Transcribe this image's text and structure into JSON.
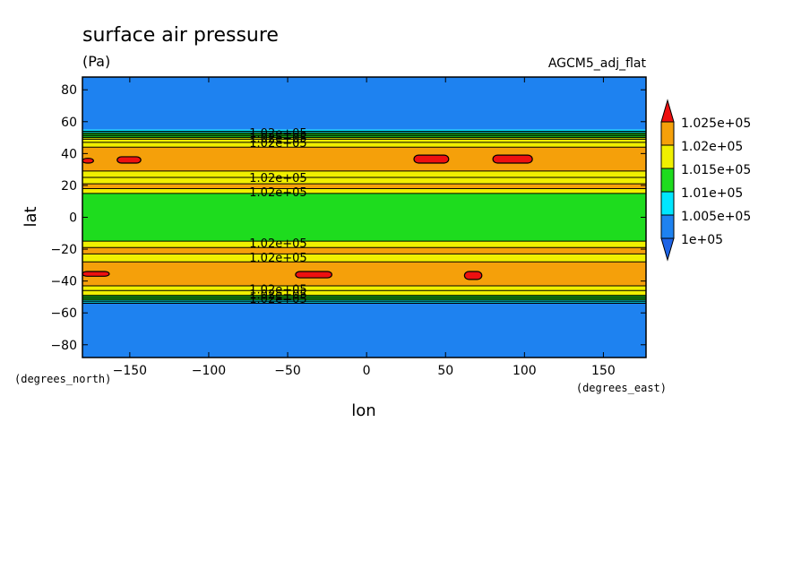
{
  "chart_data": {
    "type": "heatmap",
    "title": "surface air pressure",
    "units": "(Pa)",
    "model": "AGCM5_adj_flat",
    "xlabel": "lon",
    "ylabel": "lat",
    "x_units": "(degrees_east)",
    "y_units": "(degrees_north)",
    "xlim": [
      -180,
      177
    ],
    "ylim": [
      -88,
      88
    ],
    "xticks": [
      -150,
      -100,
      -50,
      0,
      50,
      100,
      150
    ],
    "xtick_labels": [
      "−150",
      "−100",
      "−50",
      "0",
      "50",
      "100",
      "150"
    ],
    "yticks": [
      -80,
      -60,
      -40,
      -20,
      0,
      20,
      40,
      60,
      80
    ],
    "ytick_labels": [
      "−80",
      "−60",
      "−40",
      "−20",
      "0",
      "20",
      "40",
      "60",
      "80"
    ],
    "levels": [
      100000,
      100500,
      101000,
      101500,
      102000,
      102500
    ],
    "colorbar": {
      "labels": [
        "1e+05",
        "1.005e+05",
        "1.01e+05",
        "1.015e+05",
        "1.02e+05",
        "1.025e+05"
      ],
      "colors": [
        "#1e82f0",
        "#00e6ff",
        "#1edc1e",
        "#f0f000",
        "#f5a00a",
        "#ee1010"
      ],
      "below_color": "#1e64e6"
    },
    "bands": [
      {
        "lat_from": 55,
        "lat_to": 88,
        "level": 100000
      },
      {
        "lat_from": 53,
        "lat_to": 55,
        "level": 100500
      },
      {
        "lat_from": 50,
        "lat_to": 53,
        "level": 101000
      },
      {
        "lat_from": 44,
        "lat_to": 50,
        "level": 101500
      },
      {
        "lat_from": 29,
        "lat_to": 44,
        "level": 102000
      },
      {
        "lat_from": 21,
        "lat_to": 29,
        "level": 101500
      },
      {
        "lat_from": 18,
        "lat_to": 21,
        "level": 102000
      },
      {
        "lat_from": 15,
        "lat_to": 18,
        "level": 101500
      },
      {
        "lat_from": -15,
        "lat_to": 15,
        "level": 101000
      },
      {
        "lat_from": -19,
        "lat_to": -15,
        "level": 101500
      },
      {
        "lat_from": -23,
        "lat_to": -19,
        "level": 102000
      },
      {
        "lat_from": -28,
        "lat_to": -23,
        "level": 101500
      },
      {
        "lat_from": -43,
        "lat_to": -28,
        "level": 102000
      },
      {
        "lat_from": -49,
        "lat_to": -43,
        "level": 101500
      },
      {
        "lat_from": -52,
        "lat_to": -49,
        "level": 101000
      },
      {
        "lat_from": -54,
        "lat_to": -52,
        "level": 100500
      },
      {
        "lat_from": -88,
        "lat_to": -54,
        "level": 100000
      }
    ],
    "contour_lats": [
      54,
      53,
      52,
      51,
      50,
      49,
      47,
      44,
      29,
      25,
      21,
      18,
      15,
      -15,
      -19,
      -23,
      -28,
      -43,
      -46,
      -49,
      -50,
      -51,
      -52,
      -53,
      -54
    ],
    "high_cells": [
      {
        "lon_from": -180,
        "lon_to": -173,
        "lat_from": 34,
        "lat_to": 37
      },
      {
        "lon_from": -158,
        "lon_to": -143,
        "lat_from": 34,
        "lat_to": 38
      },
      {
        "lon_from": 30,
        "lon_to": 52,
        "lat_from": 34,
        "lat_to": 39
      },
      {
        "lon_from": 80,
        "lon_to": 105,
        "lat_from": 34,
        "lat_to": 39
      },
      {
        "lon_from": -180,
        "lon_to": -163,
        "lat_from": -37,
        "lat_to": -34
      },
      {
        "lon_from": -45,
        "lon_to": -22,
        "lat_from": -38,
        "lat_to": -34
      },
      {
        "lon_from": 62,
        "lon_to": 73,
        "lat_from": -39,
        "lat_to": -34
      }
    ],
    "contour_labels": [
      {
        "text": "1.02e+05",
        "lon": -56,
        "lat": 53
      },
      {
        "text": "1.02e+05",
        "lon": -56,
        "lat": 50
      },
      {
        "text": "1.02e+05",
        "lon": -56,
        "lat": 47
      },
      {
        "text": "1.02e+05",
        "lon": -56,
        "lat": 25
      },
      {
        "text": "1.02e+05",
        "lon": -56,
        "lat": 16
      },
      {
        "text": "1.02e+05",
        "lon": -56,
        "lat": -16
      },
      {
        "text": "1.02e+05",
        "lon": -56,
        "lat": -25
      },
      {
        "text": "1.02e+05",
        "lon": -56,
        "lat": -45
      },
      {
        "text": "1.02e+05",
        "lon": -56,
        "lat": -48
      },
      {
        "text": "1.02e+05",
        "lon": -56,
        "lat": -51
      }
    ]
  }
}
